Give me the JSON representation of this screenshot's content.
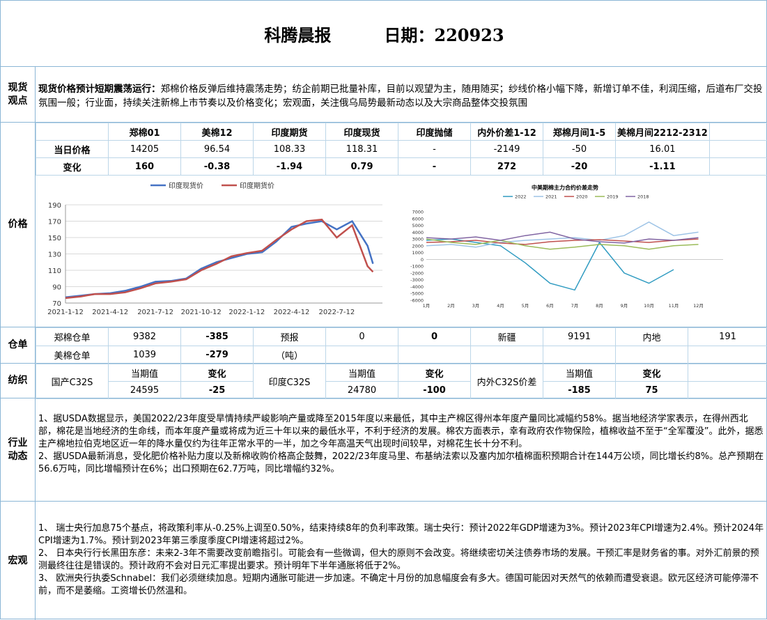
{
  "header": {
    "title": "科腾晨报",
    "date_label": "日期：220923"
  },
  "sections": {
    "spot": {
      "label": "现货观点",
      "lead": "现货价格预计短期震荡运行：",
      "text": "郑棉价格反弹后维持震荡走势；纺企前期已批量补库，目前以观望为主，随用随买；纱线价格小幅下降，新增订单不佳，利润压缩，后道布厂交投氛围一般；行业面，持续关注新棉上市节奏以及价格变化；宏观面，关注俄乌局势最新动态以及大宗商品整体交投氛围"
    },
    "price": {
      "label": "价格",
      "headers": [
        "郑棉01",
        "美棉12",
        "印度期货",
        "印度现货",
        "印度抛储",
        "内外价差1-12",
        "郑棉月间1-5",
        "美棉月间2212-2312"
      ],
      "rows": [
        {
          "name": "当日价格",
          "values": [
            "14205",
            "96.54",
            "108.33",
            "118.31",
            "-",
            "-2149",
            "-50",
            "16.01"
          ]
        },
        {
          "name": "变化",
          "values": [
            "160",
            "-0.38",
            "-1.94",
            "0.79",
            "-",
            "272",
            "-20",
            "-1.11"
          ]
        }
      ]
    },
    "warehouse": {
      "label": "仓单",
      "row1": [
        "郑棉仓单",
        "9382",
        "-385",
        "预报",
        "0",
        "0",
        "新疆",
        "9191",
        "内地",
        "191"
      ],
      "row2": [
        "美棉仓单",
        "1039",
        "-279",
        "（吨）"
      ]
    },
    "textile": {
      "label": "纺织",
      "current": "当期值",
      "change": "变化",
      "items": [
        {
          "name": "国产C32S",
          "value": "24595",
          "change": "-25"
        },
        {
          "name": "印度C32S",
          "value": "24780",
          "change": "-100"
        },
        {
          "name": "内外C32S价差",
          "value": "-185",
          "change": "75"
        }
      ]
    },
    "industry": {
      "label": "行业动态",
      "p1": "1、据USDA数据显示，美国2022/23年度受旱情持续严峻影响产量或降至2015年度以来最低，其中主产棉区得州本年度产量同比减幅约58%。据当地经济学家表示，在得州西北部，棉花是当地经济的生命线，而本年度产量或将成为近三十年以来的最低水平，不利于经济的发展。棉农方面表示，幸有政府农作物保险，植棉收益不至于“全军覆没”。此外，据悉主产棉地拉伯克地区近一年的降水量仅约为往年正常水平的一半，加之今年高温天气出现时间较早，对棉花生长十分不利。",
      "p2": "2、据USDA最新消息，受化肥价格补贴力度以及新棉收购价格高企鼓舞，2022/23年度马里、布基纳法索以及塞内加尔植棉面积预期合计在144万公顷，同比增长约8%。总产预期在56.6万吨，同比增幅预计在6%；出口预期在62.7万吨，同比增幅约32%。"
    },
    "macro": {
      "label": "宏观",
      "p1": "1、  瑞士央行加息75个基点，将政策利率从-0.25%上调至0.50%，结束持续8年的负利率政策。瑞士央行：预计2022年GDP增速为3%。预计2023年CPI增速为2.4%。预计2024年CPI增速为1.7%。预计到2023年第三季度季度CPI增速将超过2%。",
      "p2": "2、  日本央行行长黑田东彦：未来2-3年不需要改变前瞻指引。可能会有一些微调，但大的原则不会改变。将继续密切关注债券市场的发展。干预汇率是财务省的事。对外汇前景的预测最终往往是错误的。预计政府不会对日元汇率提出要求。预计明年下半年通胀将低于2%。",
      "p3": "3、  欧洲央行执委Schnabel：我们必须继续加息。短期内通胀可能进一步加速。不确定十月份的加息幅度会有多大。德国可能因对天然气的依赖而遭受衰退。欧元区经济可能停滞不前，而不是萎缩。工资增长仍然温和。"
    }
  },
  "chart_data": [
    {
      "type": "line",
      "title": "",
      "series": [
        {
          "name": "印度现货价",
          "color": "#4472c4",
          "x": [
            "2021-01-12",
            "2021-02-12",
            "2021-03-12",
            "2021-04-12",
            "2021-05-12",
            "2021-06-12",
            "2021-07-12",
            "2021-08-12",
            "2021-09-12",
            "2021-10-12",
            "2021-11-12",
            "2021-12-12",
            "2022-01-12",
            "2022-02-12",
            "2022-03-12",
            "2022-04-12",
            "2022-05-12",
            "2022-06-12",
            "2022-07-12",
            "2022-08-12",
            "2022-09-12",
            "2022-09-23"
          ],
          "y": [
            77,
            79,
            81,
            82,
            85,
            90,
            96,
            97,
            100,
            112,
            120,
            125,
            130,
            132,
            145,
            163,
            167,
            170,
            160,
            170,
            140,
            118
          ]
        },
        {
          "name": "印度期货价",
          "color": "#c0504d",
          "x": [
            "2021-01-12",
            "2021-02-12",
            "2021-03-12",
            "2021-04-12",
            "2021-05-12",
            "2021-06-12",
            "2021-07-12",
            "2021-08-12",
            "2021-09-12",
            "2021-10-12",
            "2021-11-12",
            "2021-12-12",
            "2022-01-12",
            "2022-02-12",
            "2022-03-12",
            "2022-04-12",
            "2022-05-12",
            "2022-06-12",
            "2022-07-12",
            "2022-08-12",
            "2022-09-12",
            "2022-09-23"
          ],
          "y": [
            76,
            78,
            81,
            81,
            83,
            88,
            94,
            96,
            99,
            110,
            118,
            127,
            131,
            134,
            147,
            160,
            170,
            172,
            150,
            165,
            115,
            108
          ]
        }
      ],
      "x_ticks": [
        "2021-1-12",
        "2021-4-12",
        "2021-7-12",
        "2021-10-12",
        "2022-1-12",
        "2022-4-12",
        "2022-7-12"
      ],
      "y_ticks": [
        70,
        90,
        110,
        130,
        150,
        170,
        190
      ],
      "ylim": [
        70,
        190
      ],
      "grid": true,
      "legend": "top"
    },
    {
      "type": "line",
      "title": "中美期棉主力合约价差走势",
      "x_ticks": [
        "1月",
        "2月",
        "3月",
        "4月",
        "5月",
        "6月",
        "7月",
        "8月",
        "9月",
        "10月",
        "11月",
        "12月"
      ],
      "y_ticks": [
        7000,
        6000,
        5000,
        4000,
        3000,
        2000,
        1000,
        0,
        -1000,
        -2000,
        -3000,
        -4000,
        -5000,
        -6000
      ],
      "ylim": [
        -6000,
        7000
      ],
      "legend": "top",
      "series": [
        {
          "name": "2022",
          "color": "#2f9bc1",
          "y": [
            2800,
            3000,
            2500,
            2000,
            -500,
            -3500,
            -4500,
            2500,
            -2000,
            -3500,
            -1500
          ]
        },
        {
          "name": "2021",
          "color": "#9dc3e6",
          "y": [
            2000,
            2200,
            1800,
            2500,
            2800,
            3000,
            3200,
            2800,
            3500,
            5500,
            3500,
            4000
          ]
        },
        {
          "name": "2020",
          "color": "#c0504d",
          "y": [
            2500,
            2600,
            2800,
            2400,
            2200,
            2600,
            2800,
            2900,
            2700,
            2500,
            2800,
            3000
          ]
        },
        {
          "name": "2019",
          "color": "#9bbb59",
          "y": [
            3000,
            2500,
            2200,
            2800,
            2000,
            1500,
            1800,
            2200,
            2000,
            1500,
            2000,
            2200
          ]
        },
        {
          "name": "2018",
          "color": "#8064a2",
          "y": [
            3200,
            3000,
            3300,
            2800,
            3500,
            4000,
            3000,
            2600,
            2400,
            3000,
            2800,
            3200
          ]
        }
      ]
    }
  ]
}
